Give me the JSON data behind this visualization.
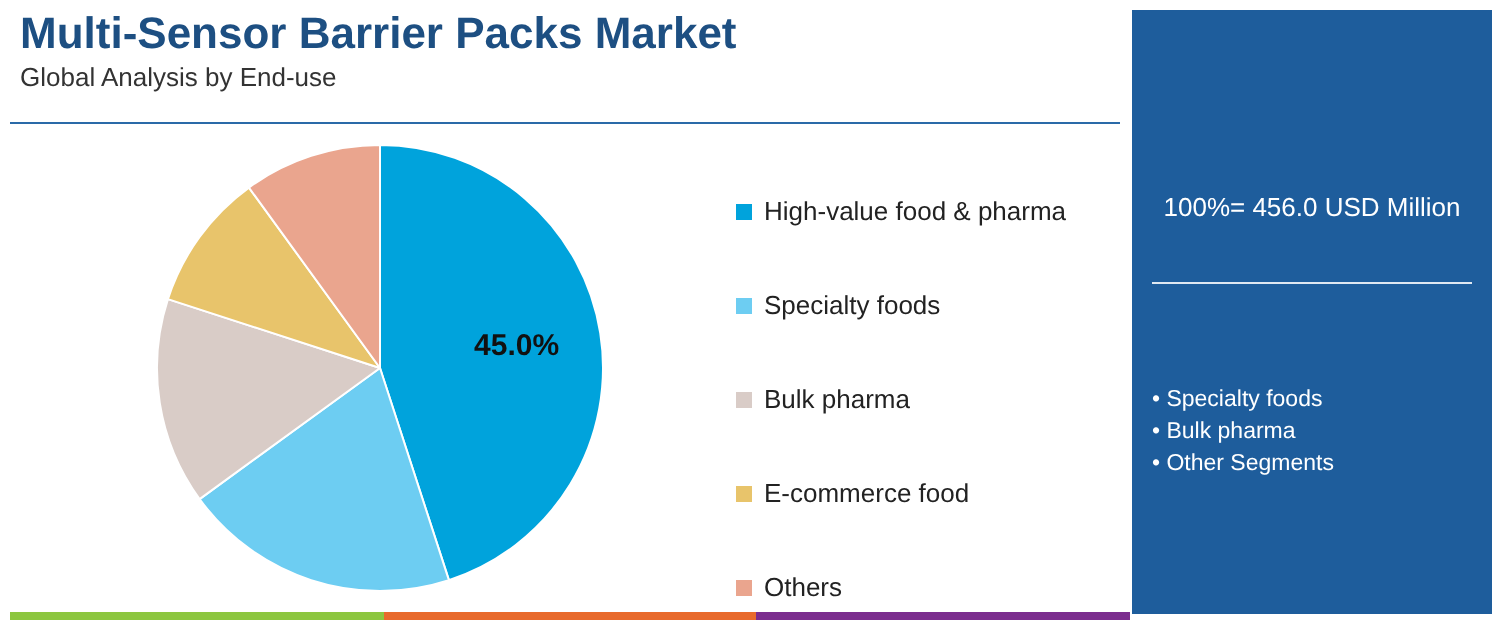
{
  "chart_data": {
    "type": "pie",
    "title": "Multi-Sensor Barrier Packs Market",
    "subtitle": "Global Analysis by End-use",
    "categories": [
      "High-value food & pharma",
      "Specialty foods",
      "Bulk pharma",
      "E-commerce food",
      "Others"
    ],
    "values": [
      45,
      20,
      15,
      10,
      10
    ],
    "colors": [
      "#00a3dc",
      "#6dcdf2",
      "#d9ccc7",
      "#e8c46b",
      "#eaa58e"
    ],
    "value_labels": [
      "45.0%",
      null,
      null,
      null,
      null
    ],
    "legend": "right",
    "annotations": [
      "100%= 456.0 USD Million",
      "• Specialty foods",
      "• Bulk pharma",
      "• Other Segments"
    ]
  }
}
